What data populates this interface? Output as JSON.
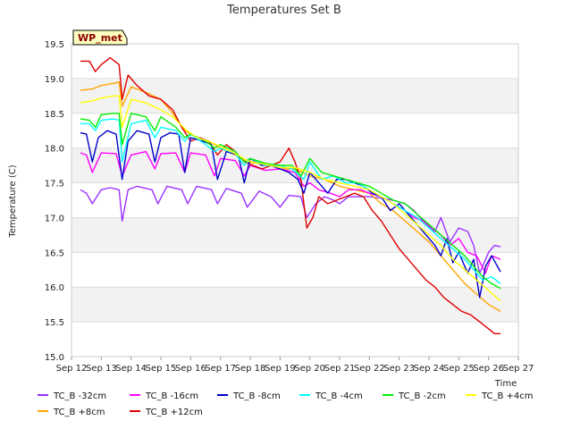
{
  "chart_data": {
    "type": "line",
    "title": "Temperatures Set B",
    "xlabel": "Time",
    "ylabel": "Temperature (C)",
    "badge": "WP_met",
    "ylim": [
      15.0,
      19.5
    ],
    "xlim": [
      12,
      27
    ],
    "xticks": [
      {
        "x": 12,
        "label": "Sep 12"
      },
      {
        "x": 13,
        "label": "Sep 13"
      },
      {
        "x": 14,
        "label": "Sep 14"
      },
      {
        "x": 15,
        "label": "Sep 15"
      },
      {
        "x": 16,
        "label": "Sep 16"
      },
      {
        "x": 17,
        "label": "Sep 17"
      },
      {
        "x": 18,
        "label": "Sep 18"
      },
      {
        "x": 19,
        "label": "Sep 19"
      },
      {
        "x": 20,
        "label": "Sep 20"
      },
      {
        "x": 21,
        "label": "Sep 21"
      },
      {
        "x": 22,
        "label": "Sep 22"
      },
      {
        "x": 23,
        "label": "Sep 23"
      },
      {
        "x": 24,
        "label": "Sep 24"
      },
      {
        "x": 25,
        "label": "Sep 25"
      },
      {
        "x": 26,
        "label": "Sep 26"
      },
      {
        "x": 27,
        "label": "Sep 27"
      }
    ],
    "yticks": [
      "15.0",
      "15.5",
      "16.0",
      "16.5",
      "17.0",
      "17.5",
      "18.0",
      "18.5",
      "19.0",
      "19.5"
    ],
    "grid": true,
    "legend_position": "bottom",
    "x_unit_note": "x values are day of month (September)",
    "series": [
      {
        "name": "TC_B -32cm",
        "color": "#9b30ff",
        "x": [
          12.3,
          12.5,
          12.7,
          13.0,
          13.3,
          13.6,
          13.7,
          13.9,
          14.2,
          14.7,
          14.9,
          15.2,
          15.7,
          15.9,
          16.2,
          16.7,
          16.9,
          17.2,
          17.7,
          17.9,
          18.3,
          18.7,
          19.0,
          19.3,
          19.7,
          19.9,
          20.2,
          20.5,
          20.8,
          21.0,
          21.3,
          21.6,
          22.0,
          22.4,
          22.8,
          23.2,
          23.5,
          23.9,
          24.2,
          24.4,
          24.7,
          25.0,
          25.3,
          25.5,
          25.7,
          26.0,
          26.2,
          26.4
        ],
        "y": [
          17.4,
          17.35,
          17.2,
          17.4,
          17.43,
          17.4,
          16.95,
          17.4,
          17.45,
          17.4,
          17.2,
          17.45,
          17.4,
          17.2,
          17.45,
          17.4,
          17.2,
          17.42,
          17.35,
          17.15,
          17.38,
          17.3,
          17.15,
          17.32,
          17.3,
          17.0,
          17.2,
          17.3,
          17.25,
          17.2,
          17.3,
          17.3,
          17.3,
          17.28,
          17.25,
          17.2,
          17.1,
          16.9,
          16.8,
          17.0,
          16.65,
          16.85,
          16.8,
          16.6,
          16.2,
          16.5,
          16.6,
          16.58
        ]
      },
      {
        "name": "TC_B +8cm",
        "color": "#ffa500",
        "x": [
          12.3,
          12.7,
          13.0,
          13.4,
          13.6,
          13.7,
          14.0,
          14.5,
          15.0,
          15.4,
          15.8,
          16.2,
          16.6,
          17.0,
          17.5,
          17.9,
          18.3,
          18.7,
          19.0,
          19.5,
          20.0,
          20.5,
          21.0,
          21.5,
          22.0,
          22.4,
          22.8,
          23.2,
          23.6,
          24.0,
          24.4,
          24.8,
          25.2,
          25.6,
          26.0,
          26.4
        ],
        "y": [
          18.83,
          18.85,
          18.9,
          18.93,
          18.95,
          18.6,
          18.88,
          18.8,
          18.7,
          18.5,
          18.25,
          18.15,
          18.1,
          18.0,
          17.9,
          17.8,
          17.78,
          17.75,
          17.7,
          17.7,
          17.6,
          17.55,
          17.45,
          17.4,
          17.35,
          17.2,
          17.1,
          16.95,
          16.8,
          16.65,
          16.45,
          16.25,
          16.05,
          15.9,
          15.75,
          15.65
        ]
      },
      {
        "name": "TC_B -16cm",
        "color": "#ff00ff",
        "x": [
          12.3,
          12.5,
          12.7,
          13.0,
          13.5,
          13.7,
          14.0,
          14.5,
          14.8,
          15.0,
          15.5,
          15.8,
          16.0,
          16.5,
          16.8,
          17.0,
          17.5,
          17.8,
          18.0,
          18.5,
          19.0,
          19.5,
          19.8,
          20.0,
          20.3,
          20.7,
          21.0,
          21.3,
          21.7,
          22.0,
          22.4,
          22.8,
          23.2,
          23.5,
          23.8,
          24.1,
          24.4,
          24.7,
          25.0,
          25.3,
          25.6,
          25.9,
          26.1,
          26.4
        ],
        "y": [
          17.93,
          17.9,
          17.65,
          17.93,
          17.92,
          17.6,
          17.9,
          17.95,
          17.7,
          17.92,
          17.93,
          17.65,
          17.93,
          17.9,
          17.6,
          17.85,
          17.82,
          17.6,
          17.75,
          17.68,
          17.7,
          17.65,
          17.45,
          17.5,
          17.4,
          17.35,
          17.3,
          17.4,
          17.4,
          17.35,
          17.3,
          17.2,
          17.1,
          17.0,
          16.95,
          16.85,
          16.75,
          16.6,
          16.7,
          16.5,
          16.45,
          16.2,
          16.45,
          16.4
        ]
      },
      {
        "name": "TC_B +12cm",
        "color": "#e00000",
        "x": [
          12.3,
          12.6,
          12.8,
          13.0,
          13.3,
          13.6,
          13.7,
          13.9,
          14.2,
          14.6,
          15.0,
          15.4,
          15.7,
          16.0,
          16.3,
          16.6,
          16.9,
          17.2,
          17.5,
          17.8,
          18.1,
          18.4,
          18.7,
          19.0,
          19.3,
          19.5,
          19.7,
          19.9,
          20.1,
          20.3,
          20.6,
          20.9,
          21.2,
          21.5,
          21.8,
          22.1,
          22.4,
          22.7,
          23.0,
          23.3,
          23.6,
          23.9,
          24.2,
          24.5,
          24.8,
          25.1,
          25.4,
          25.7,
          26.0,
          26.2,
          26.4
        ],
        "y": [
          19.25,
          19.25,
          19.1,
          19.2,
          19.3,
          19.2,
          18.7,
          19.05,
          18.9,
          18.75,
          18.7,
          18.55,
          18.3,
          18.1,
          18.15,
          18.1,
          17.9,
          18.05,
          17.95,
          17.8,
          17.75,
          17.7,
          17.75,
          17.8,
          18.0,
          17.8,
          17.55,
          16.85,
          17.0,
          17.3,
          17.2,
          17.25,
          17.3,
          17.35,
          17.3,
          17.1,
          16.95,
          16.75,
          16.55,
          16.4,
          16.25,
          16.1,
          16.0,
          15.85,
          15.75,
          15.65,
          15.6,
          15.5,
          15.4,
          15.33,
          15.33
        ]
      },
      {
        "name": "TC_B -8cm",
        "color": "#0000cd",
        "x": [
          12.3,
          12.5,
          12.7,
          12.9,
          13.2,
          13.5,
          13.7,
          13.9,
          14.2,
          14.6,
          14.8,
          15.0,
          15.3,
          15.6,
          15.8,
          16.0,
          16.4,
          16.7,
          16.9,
          17.2,
          17.6,
          17.8,
          18.0,
          18.4,
          18.7,
          19.0,
          19.3,
          19.6,
          19.8,
          20.0,
          20.3,
          20.6,
          20.9,
          21.2,
          21.5,
          21.8,
          22.1,
          22.4,
          22.7,
          23.0,
          23.3,
          23.6,
          23.9,
          24.2,
          24.4,
          24.6,
          24.8,
          25.0,
          25.3,
          25.5,
          25.7,
          25.9,
          26.1,
          26.4
        ],
        "y": [
          18.22,
          18.2,
          17.8,
          18.15,
          18.25,
          18.2,
          17.55,
          18.1,
          18.25,
          18.2,
          17.8,
          18.15,
          18.22,
          18.2,
          17.65,
          18.15,
          18.1,
          18.05,
          17.55,
          17.95,
          17.9,
          17.5,
          17.85,
          17.75,
          17.75,
          17.7,
          17.65,
          17.55,
          17.35,
          17.65,
          17.5,
          17.35,
          17.55,
          17.55,
          17.5,
          17.45,
          17.35,
          17.3,
          17.1,
          17.2,
          17.05,
          16.9,
          16.75,
          16.6,
          16.45,
          16.7,
          16.35,
          16.5,
          16.2,
          16.4,
          15.85,
          16.3,
          16.45,
          16.22
        ]
      },
      {
        "name": "TC_B -4cm",
        "color": "#00ffff",
        "x": [
          12.3,
          12.6,
          12.8,
          13.0,
          13.4,
          13.6,
          13.7,
          14.0,
          14.5,
          14.8,
          15.0,
          15.5,
          15.8,
          16.0,
          16.5,
          16.8,
          17.0,
          17.5,
          17.8,
          18.0,
          18.5,
          19.0,
          19.4,
          19.8,
          20.0,
          20.4,
          20.8,
          21.2,
          21.6,
          22.0,
          22.4,
          22.8,
          23.2,
          23.6,
          24.0,
          24.4,
          24.8,
          25.2,
          25.5,
          25.8,
          26.1,
          26.4
        ],
        "y": [
          18.35,
          18.35,
          18.25,
          18.4,
          18.42,
          18.4,
          17.8,
          18.35,
          18.4,
          18.15,
          18.3,
          18.25,
          18.1,
          18.2,
          18.05,
          17.95,
          18.0,
          17.92,
          17.75,
          17.85,
          17.75,
          17.75,
          17.7,
          17.55,
          17.8,
          17.55,
          17.6,
          17.5,
          17.5,
          17.4,
          17.3,
          17.2,
          17.1,
          17.0,
          16.85,
          16.7,
          16.55,
          16.4,
          16.25,
          16.1,
          16.15,
          16.05
        ]
      },
      {
        "name": "TC_B -2cm",
        "color": "#00ee00",
        "x": [
          12.3,
          12.6,
          12.8,
          13.0,
          13.4,
          13.6,
          13.7,
          14.0,
          14.5,
          14.8,
          15.0,
          15.5,
          15.8,
          16.0,
          16.5,
          16.8,
          17.0,
          17.5,
          17.8,
          18.0,
          18.5,
          19.0,
          19.4,
          19.7,
          20.0,
          20.4,
          20.8,
          21.2,
          21.6,
          22.0,
          22.4,
          22.8,
          23.2,
          23.6,
          24.0,
          24.4,
          24.8,
          25.2,
          25.5,
          25.8,
          26.1,
          26.4
        ],
        "y": [
          18.42,
          18.4,
          18.3,
          18.48,
          18.5,
          18.5,
          18.05,
          18.5,
          18.45,
          18.25,
          18.45,
          18.3,
          18.15,
          18.2,
          18.1,
          18.0,
          18.05,
          17.95,
          17.8,
          17.85,
          17.78,
          17.75,
          17.75,
          17.6,
          17.85,
          17.65,
          17.6,
          17.55,
          17.5,
          17.45,
          17.35,
          17.25,
          17.2,
          17.05,
          16.9,
          16.75,
          16.6,
          16.45,
          16.3,
          16.15,
          16.05,
          15.98
        ]
      },
      {
        "name": "TC_B +4cm",
        "color": "#ffff00",
        "x": [
          12.3,
          12.7,
          13.0,
          13.4,
          13.6,
          13.7,
          14.0,
          14.5,
          15.0,
          15.4,
          15.8,
          16.2,
          16.6,
          17.0,
          17.5,
          17.9,
          18.3,
          18.7,
          19.0,
          19.5,
          20.0,
          20.5,
          21.0,
          21.5,
          22.0,
          22.4,
          22.8,
          23.2,
          23.6,
          24.0,
          24.4,
          24.8,
          25.2,
          25.6,
          26.0,
          26.4
        ],
        "y": [
          18.65,
          18.68,
          18.72,
          18.75,
          18.75,
          18.3,
          18.7,
          18.65,
          18.55,
          18.45,
          18.28,
          18.15,
          18.1,
          18.02,
          17.92,
          17.82,
          17.78,
          17.75,
          17.72,
          17.72,
          17.65,
          17.55,
          17.5,
          17.45,
          17.4,
          17.3,
          17.2,
          17.05,
          16.9,
          16.75,
          16.6,
          16.4,
          16.25,
          16.1,
          15.95,
          15.8
        ]
      }
    ]
  }
}
